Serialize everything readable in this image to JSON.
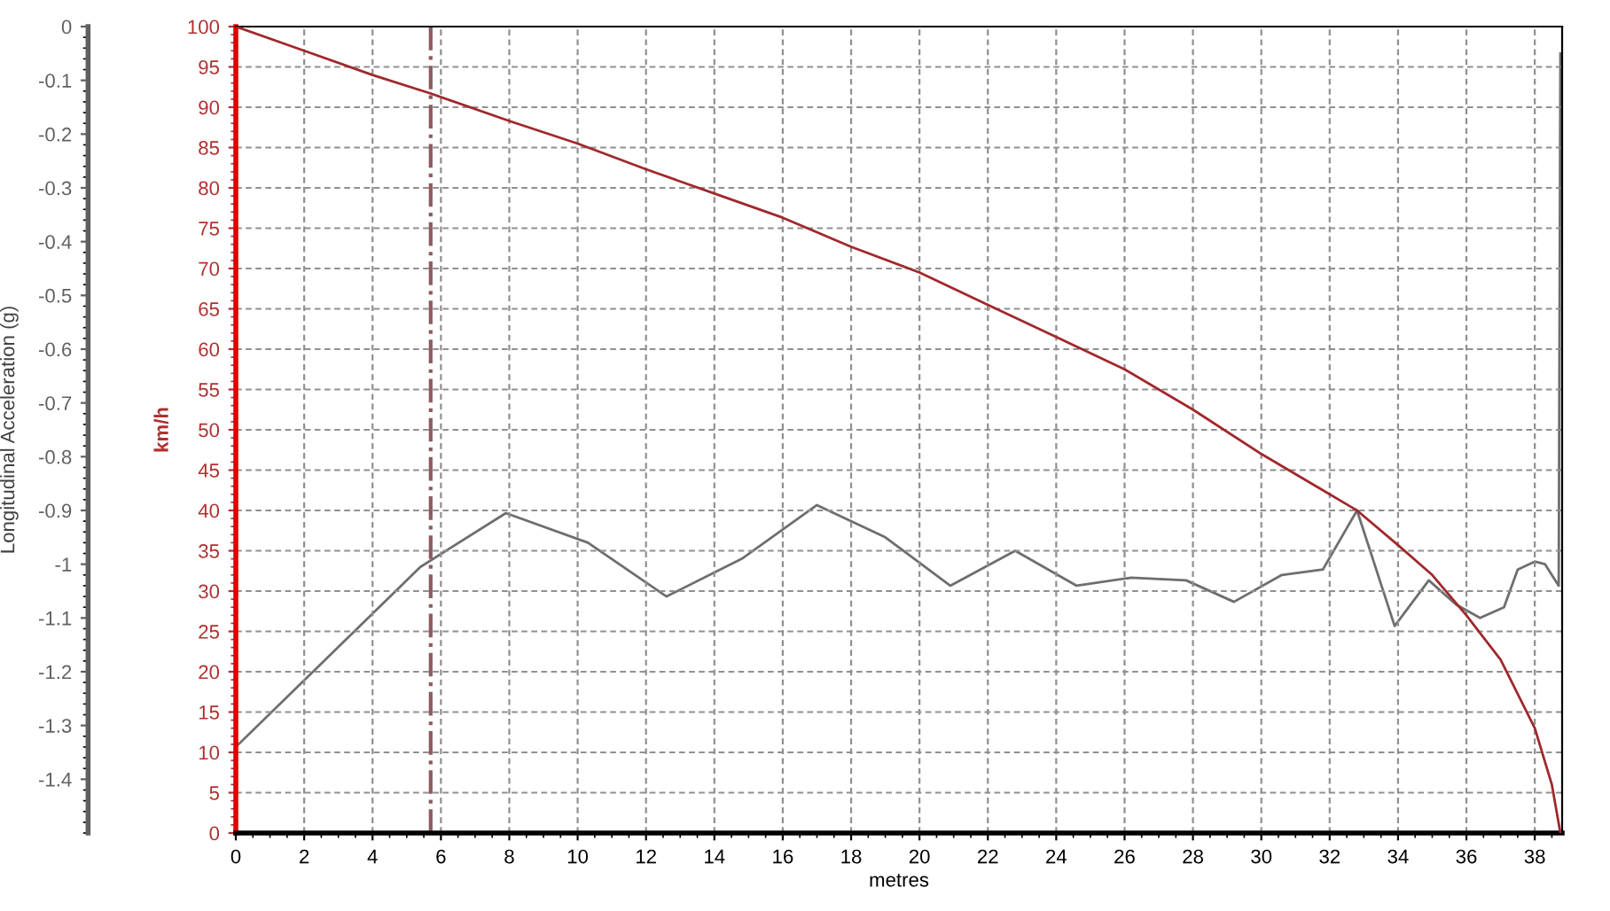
{
  "chart_data": {
    "type": "line",
    "xlabel": "metres",
    "ylabel": "km/h",
    "y2label": "Longitudinal Acceleration (g)",
    "xlim": [
      0,
      38.8
    ],
    "xticks": [
      0,
      2,
      4,
      6,
      8,
      10,
      12,
      14,
      16,
      18,
      20,
      22,
      24,
      26,
      28,
      30,
      32,
      34,
      36,
      38
    ],
    "ylim": [
      0,
      100
    ],
    "yticks": [
      0,
      5,
      10,
      15,
      20,
      25,
      30,
      35,
      40,
      45,
      50,
      55,
      60,
      65,
      70,
      75,
      80,
      85,
      90,
      95,
      100
    ],
    "y2lim": [
      -1.5,
      0
    ],
    "y2ticks": [
      0,
      -0.1,
      -0.2,
      -0.3,
      -0.4,
      -0.5,
      -0.6,
      -0.7,
      -0.8,
      -0.9,
      -1,
      -1.1,
      -1.2,
      -1.3,
      -1.4
    ],
    "grid": true,
    "legend": false,
    "marker": "none",
    "line_style": "solid",
    "ref_lines": [
      {
        "axis": "x",
        "value": 5.7,
        "label": null,
        "color": "#8b5a60",
        "line_style": "dashdot"
      }
    ],
    "series": [
      {
        "color": "#a0282c",
        "x": [
          0,
          2,
          4,
          5.7,
          8,
          10,
          12,
          14,
          16,
          18,
          20,
          22,
          24,
          26,
          28,
          30,
          32,
          32.8,
          34,
          35,
          36,
          37,
          38,
          38.5,
          38.75
        ],
        "values": [
          100,
          97,
          94,
          91.7,
          88.3,
          85.5,
          82.3,
          79.3,
          76.3,
          72.7,
          69.5,
          65.5,
          61.5,
          57.5,
          52.5,
          47,
          42,
          40,
          35.7,
          32,
          27,
          21.5,
          13,
          6,
          0
        ]
      },
      {
        "color": "#6e6e6e",
        "axis": "y2",
        "x": [
          0,
          5.4,
          7.9,
          10.3,
          12.6,
          14.8,
          17,
          19,
          20.9,
          22.8,
          24.6,
          26.2,
          27.8,
          29.2,
          30.6,
          31.8,
          32.8,
          33.9,
          34.9,
          35.7,
          36.4,
          37.1,
          37.5,
          38.0,
          38.3,
          38.7,
          38.75
        ],
        "values": [
          -1.34,
          -1.005,
          -0.905,
          -0.96,
          -1.06,
          -0.99,
          -0.89,
          -0.95,
          -1.04,
          -0.975,
          -1.04,
          -1.025,
          -1.03,
          -1.07,
          -1.02,
          -1.01,
          -0.9,
          -1.115,
          -1.03,
          -1.075,
          -1.1,
          -1.08,
          -1.01,
          -0.995,
          -1.0,
          -1.04,
          -0.05
        ]
      }
    ]
  }
}
